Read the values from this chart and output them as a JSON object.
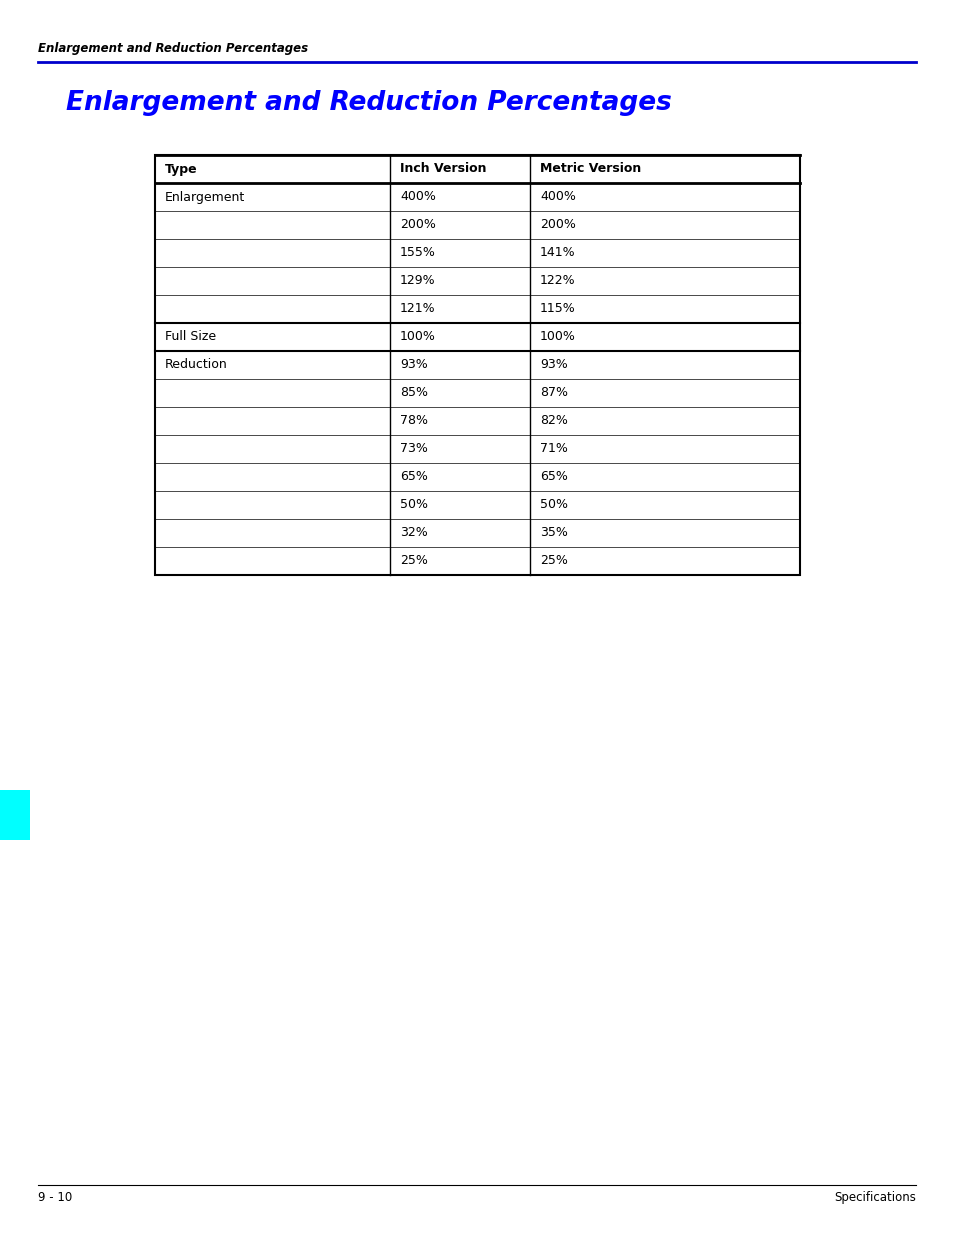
{
  "page_header": "Enlargement and Reduction Percentages",
  "title": "Enlargement and Reduction Percentages",
  "title_color": "#0000FF",
  "header_color": "#000000",
  "blue_line_color": "#0000CC",
  "footer_left": "9 - 10",
  "footer_right": "Specifications",
  "cyan_box_color": "#00FFFF",
  "table": {
    "col_headers": [
      "Type",
      "Inch Version",
      "Metric Version"
    ],
    "rows": [
      {
        "type": "Enlargement",
        "inch": "400%",
        "metric": "400%"
      },
      {
        "type": "",
        "inch": "200%",
        "metric": "200%"
      },
      {
        "type": "",
        "inch": "155%",
        "metric": "141%"
      },
      {
        "type": "",
        "inch": "129%",
        "metric": "122%"
      },
      {
        "type": "",
        "inch": "121%",
        "metric": "115%"
      },
      {
        "type": "Full Size",
        "inch": "100%",
        "metric": "100%"
      },
      {
        "type": "Reduction",
        "inch": "93%",
        "metric": "93%"
      },
      {
        "type": "",
        "inch": "85%",
        "metric": "87%"
      },
      {
        "type": "",
        "inch": "78%",
        "metric": "82%"
      },
      {
        "type": "",
        "inch": "73%",
        "metric": "71%"
      },
      {
        "type": "",
        "inch": "65%",
        "metric": "65%"
      },
      {
        "type": "",
        "inch": "50%",
        "metric": "50%"
      },
      {
        "type": "",
        "inch": "32%",
        "metric": "35%"
      },
      {
        "type": "",
        "inch": "25%",
        "metric": "25%"
      }
    ]
  }
}
